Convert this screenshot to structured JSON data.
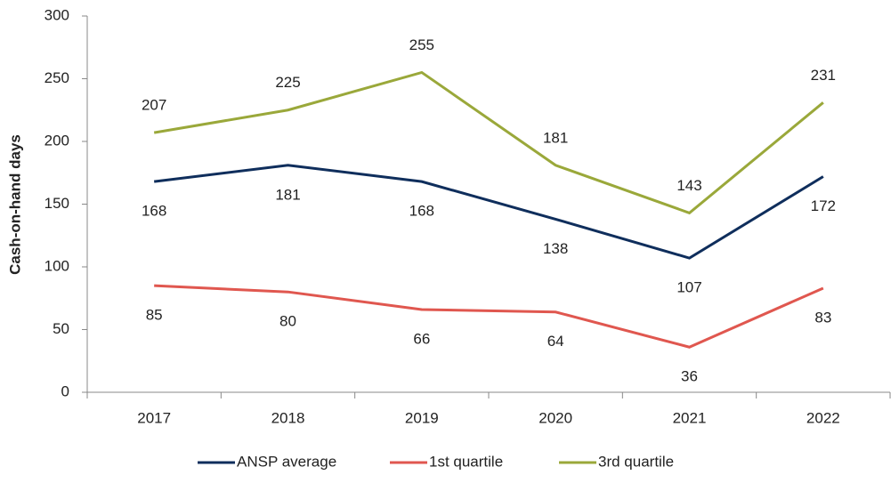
{
  "chart_data": {
    "type": "line",
    "y_label": "Cash-on-hand days",
    "categories": [
      "2017",
      "2018",
      "2019",
      "2020",
      "2021",
      "2022"
    ],
    "series": [
      {
        "name": "ANSP average",
        "color": "#0f2e5c",
        "values": [
          168,
          181,
          168,
          138,
          107,
          172
        ]
      },
      {
        "name": "1st quartile",
        "color": "#e0574f",
        "values": [
          85,
          80,
          66,
          64,
          36,
          83
        ]
      },
      {
        "name": "3rd quartile",
        "color": "#9aa83a",
        "values": [
          207,
          225,
          255,
          181,
          143,
          231
        ]
      }
    ],
    "ylim": [
      0,
      300
    ],
    "yticks": [
      0,
      50,
      100,
      150,
      200,
      250,
      300
    ],
    "grid": false,
    "legend": "bottom"
  }
}
